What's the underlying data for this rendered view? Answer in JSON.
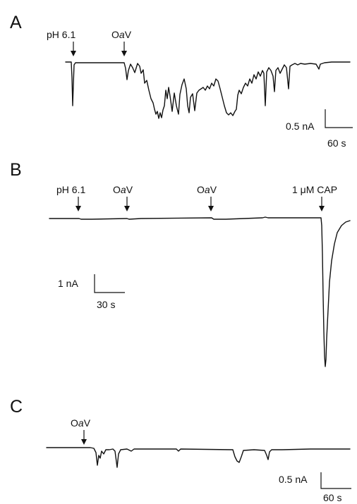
{
  "panels": [
    {
      "letter": "A",
      "markers": [
        {
          "label": "pH 6.1"
        },
        {
          "label": "OaV",
          "italic_part": "a"
        }
      ],
      "scalebar": {
        "amplitude_label": "0.5 nA",
        "time_label": "60 s"
      }
    },
    {
      "letter": "B",
      "markers": [
        {
          "label": "pH 6.1"
        },
        {
          "label": "OaV",
          "italic_part": "a"
        },
        {
          "label": "OaV",
          "italic_part": "a"
        },
        {
          "label": "1 μM CAP"
        }
      ],
      "scalebar": {
        "amplitude_label": "1 nA",
        "time_label": "30 s"
      }
    },
    {
      "letter": "C",
      "markers": [
        {
          "label": "OaV",
          "italic_part": "a"
        }
      ],
      "scalebar": {
        "amplitude_label": "0.5 nA",
        "time_label": "60 s"
      }
    }
  ]
}
